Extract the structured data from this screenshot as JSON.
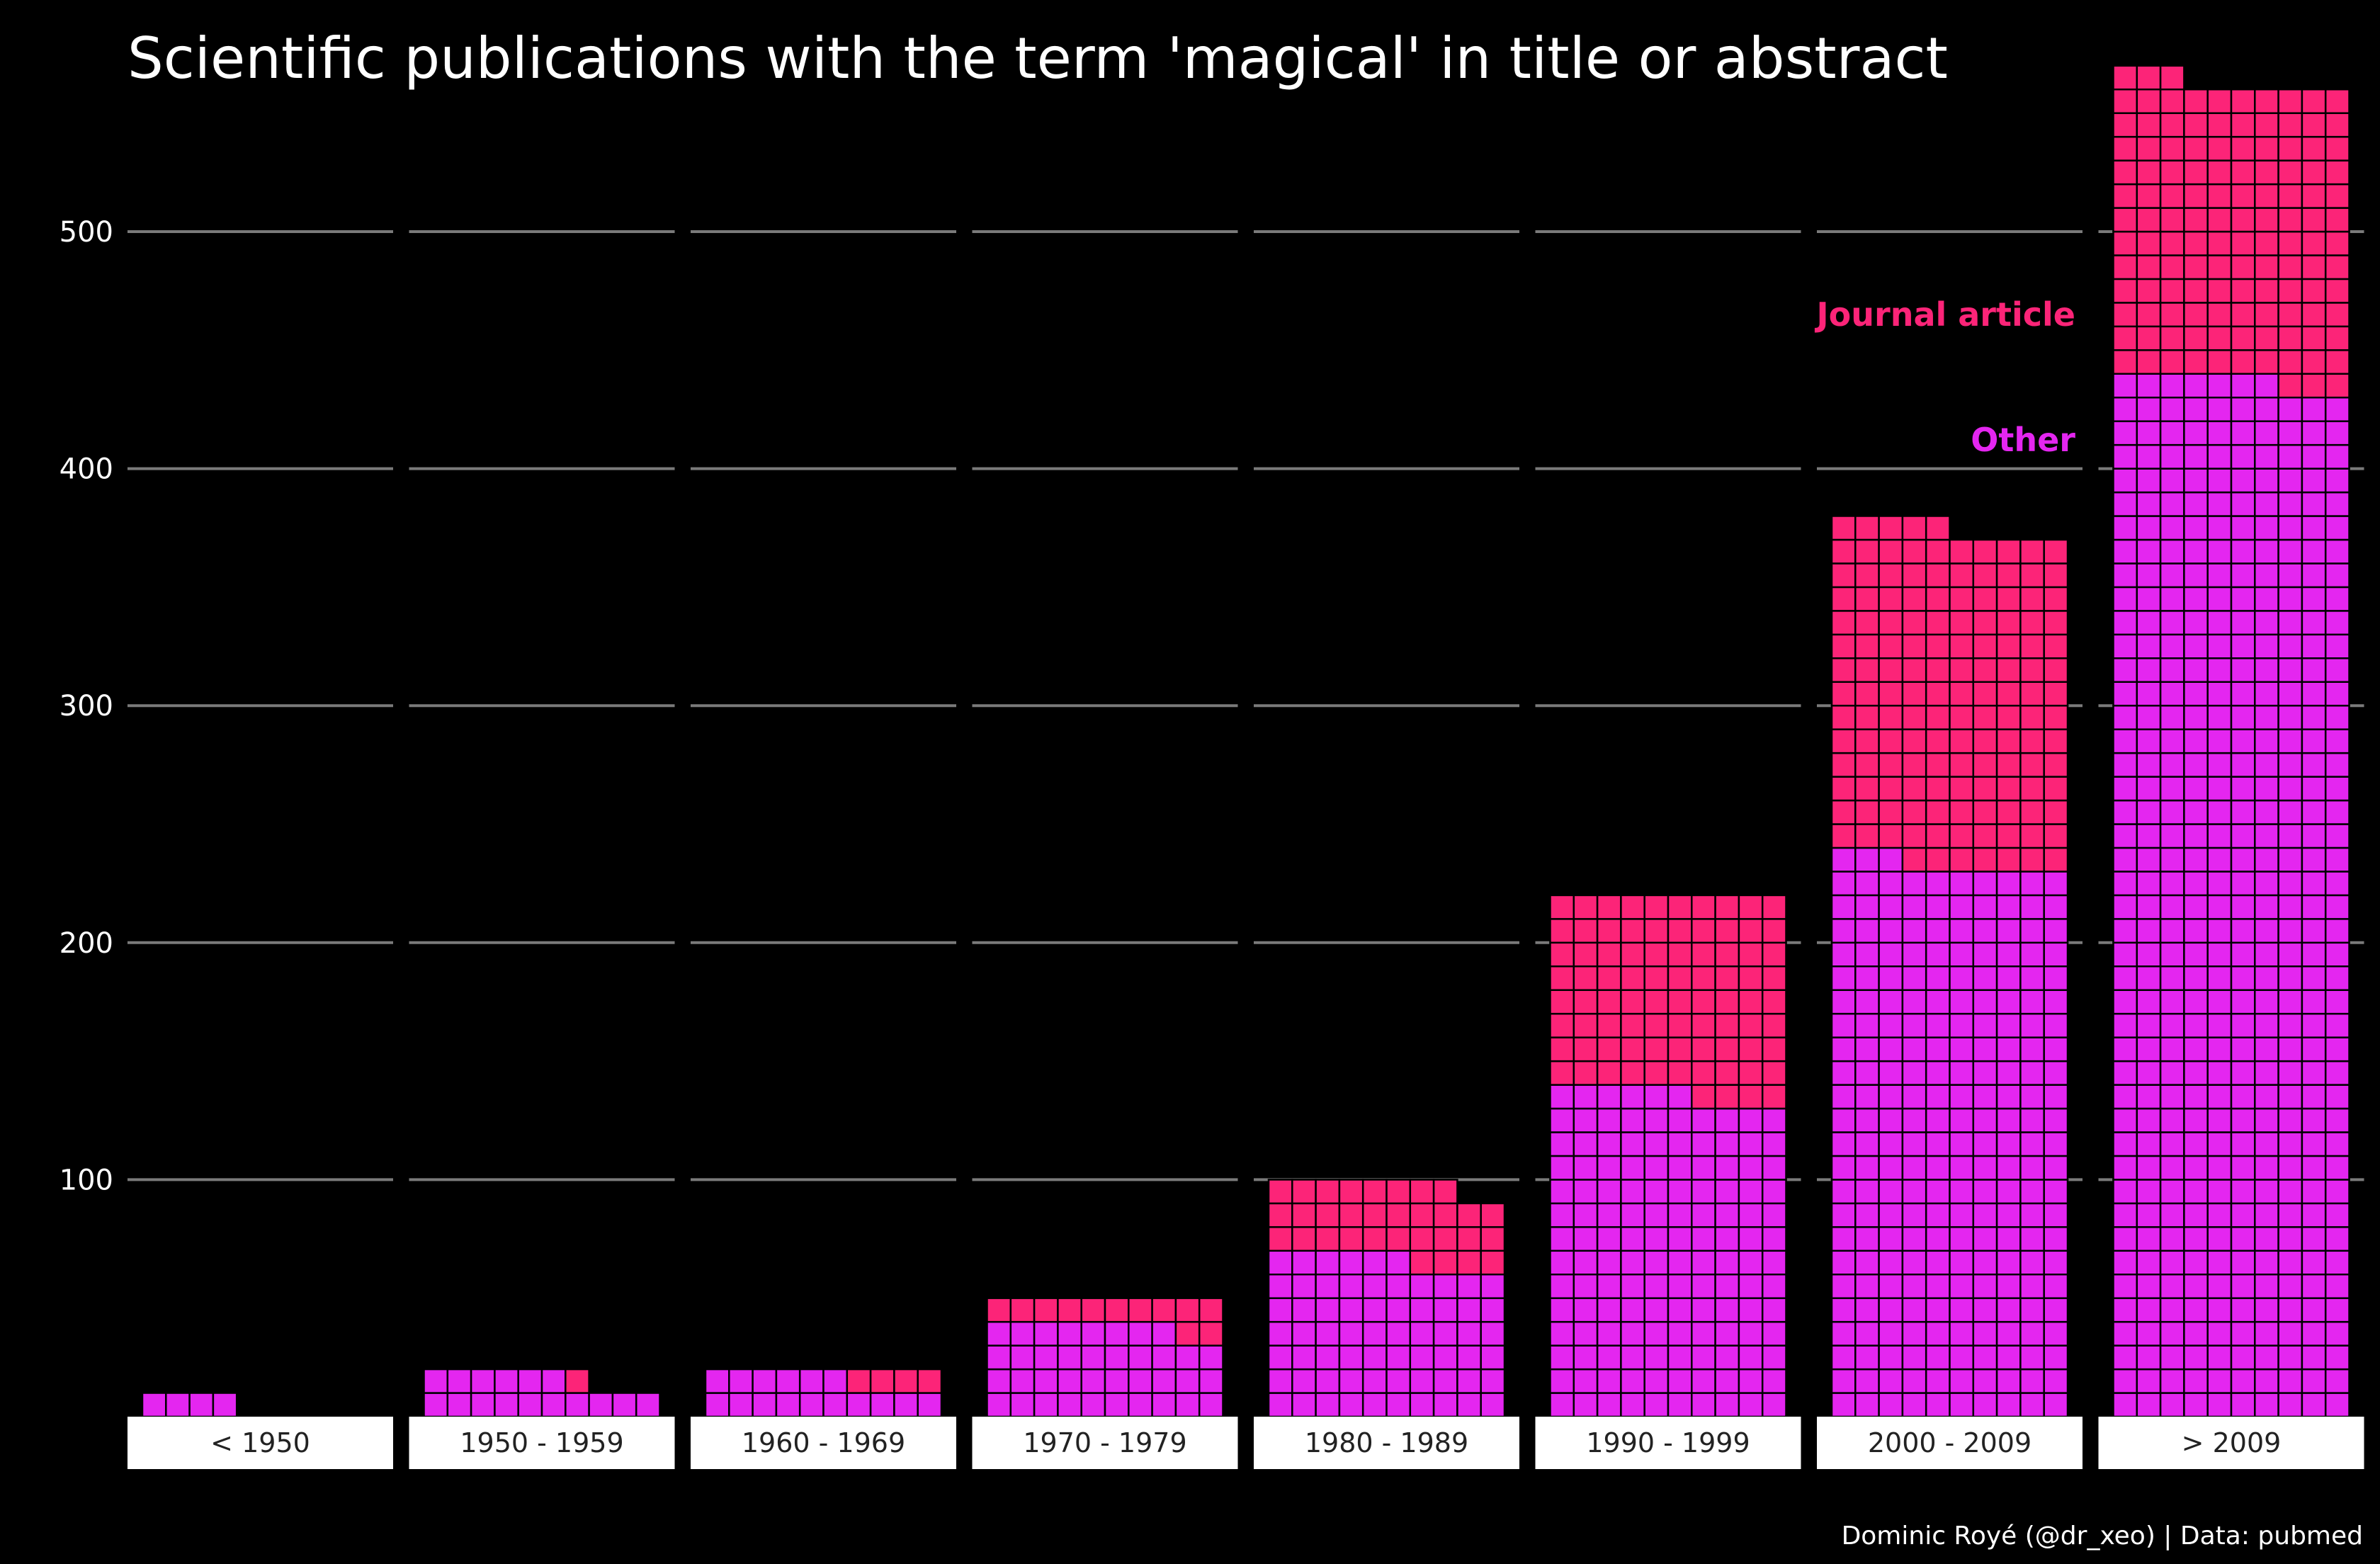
{
  "chart_data": {
    "type": "waffle-bar",
    "title": "Scientific publications with the term 'magical' in title or abstract",
    "caption": "Dominic Royé (@dr_xeo) | Data: pubmed",
    "ylim": [
      0,
      560
    ],
    "yticks": [
      100,
      200,
      300,
      400,
      500
    ],
    "grid": true,
    "legend_placement": "inside, right of 2000 - 2009 panel",
    "series": [
      {
        "name": "Other",
        "color": "#e426f0",
        "values": [
          4,
          16,
          16,
          38,
          66,
          136,
          233,
          437
        ]
      },
      {
        "name": "Journal article",
        "color": "#fc2478",
        "values": [
          0,
          1,
          4,
          12,
          32,
          84,
          142,
          126
        ]
      }
    ],
    "categories": [
      "< 1950",
      "1950 - 1959",
      "1960 - 1969",
      "1970 - 1979",
      "1980 - 1989",
      "1990 - 1999",
      "2000 - 2009",
      "> 2009"
    ],
    "annotations": [
      "Journal article",
      "Other"
    ]
  },
  "colors": {
    "background": "#000000",
    "gridline": "#7a7a7a",
    "cell_border": "#000000",
    "strip_background": "#ffffff"
  }
}
